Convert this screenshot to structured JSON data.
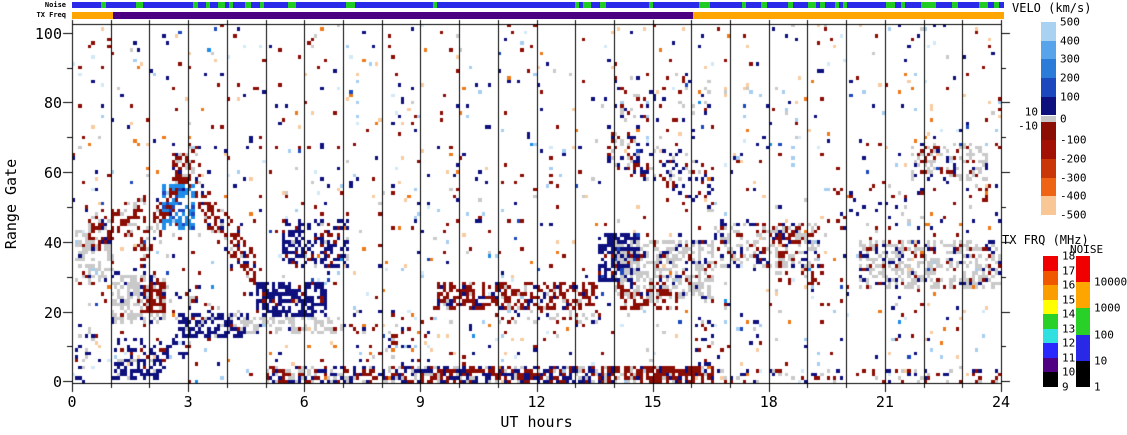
{
  "strips": {
    "noise_label": "Noise",
    "txfreq_label": "TX Freq",
    "noise_base_color": "#2A2AE8",
    "noise_green_color": "#22CC22",
    "noise_green_segments_hours": [
      [
        0.75,
        0.88
      ],
      [
        1.65,
        1.82
      ],
      [
        3.12,
        3.25
      ],
      [
        3.45,
        3.56
      ],
      [
        3.75,
        3.95
      ],
      [
        4.05,
        4.15
      ],
      [
        4.45,
        4.62
      ],
      [
        4.85,
        4.95
      ],
      [
        5.55,
        5.78
      ],
      [
        7.05,
        7.28
      ],
      [
        9.3,
        9.4
      ],
      [
        12.95,
        13.06
      ],
      [
        13.15,
        13.36
      ],
      [
        13.6,
        13.76
      ],
      [
        14.85,
        14.96
      ],
      [
        16.15,
        16.42
      ],
      [
        17.25,
        17.36
      ],
      [
        17.75,
        17.9
      ],
      [
        18.45,
        18.56
      ],
      [
        18.95,
        19.15
      ],
      [
        19.25,
        19.4
      ],
      [
        19.65,
        19.76
      ],
      [
        19.85,
        19.96
      ],
      [
        20.95,
        21.2
      ],
      [
        21.35,
        21.46
      ],
      [
        21.85,
        22.25
      ],
      [
        22.65,
        22.82
      ],
      [
        23.35,
        23.6
      ],
      [
        23.75,
        23.86
      ]
    ],
    "txfreq_segments": [
      {
        "from": 0.0,
        "to": 1.05,
        "color": "#FFA500"
      },
      {
        "from": 1.05,
        "to": 16.0,
        "color": "#4B0082"
      },
      {
        "from": 16.0,
        "to": 24.0,
        "color": "#FFA500"
      }
    ]
  },
  "axes": {
    "x_title": "UT hours",
    "y_title": "Range Gate",
    "x_major_ticks": [
      0,
      3,
      6,
      9,
      12,
      15,
      18,
      21,
      24
    ],
    "x_minor_step": 1,
    "y_major_ticks": [
      0,
      20,
      40,
      60,
      80,
      100
    ],
    "y_minor_step": 10,
    "x_range": [
      0,
      24
    ],
    "y_range": [
      0,
      103
    ]
  },
  "legend": {
    "velo": {
      "title": "VELO (km/s)",
      "labels_right": [
        "500",
        "400",
        "300",
        "200",
        "100",
        "0",
        "-100",
        "-200",
        "-300",
        "-400",
        "-500"
      ],
      "labels_left": [
        "10",
        "-10"
      ],
      "segments": [
        "#A9D2F2",
        "#57A4EA",
        "#2B7CD8",
        "#1C48BE",
        "#0E107E",
        "#C8C8C8",
        "#8B0D04",
        "#A31105",
        "#C93708",
        "#EF6414",
        "#F8C795"
      ]
    },
    "txfrq": {
      "title": "TX FRQ (MHz)",
      "labels": [
        "18",
        "17",
        "16",
        "15",
        "14",
        "13",
        "12",
        "11",
        "10",
        "9"
      ],
      "segments": [
        "#F00000",
        "#F05800",
        "#FA9E00",
        "#FFFF00",
        "#28D028",
        "#30E0E0",
        "#2828FF",
        "#500082",
        "#000000"
      ]
    },
    "noise": {
      "title": "NOISE",
      "labels": [
        "10000",
        "1000",
        "100",
        "10",
        "1"
      ],
      "segments": [
        "#F00000",
        "#FFA500",
        "#28D028",
        "#2828E6",
        "#000000"
      ]
    }
  },
  "chart_data": {
    "type": "heatmap",
    "title": "",
    "xlabel": "UT hours",
    "ylabel": "Range Gate",
    "xlim": [
      0,
      24
    ],
    "ylim": [
      0,
      103
    ],
    "x_tick_labels": [
      "0",
      "3",
      "6",
      "9",
      "12",
      "15",
      "18",
      "21",
      "24"
    ],
    "y_tick_labels": [
      "0",
      "20",
      "40",
      "60",
      "80",
      "100"
    ],
    "grid": "vertical-hour-lines",
    "legend_position": "right",
    "palette": {
      "navy": "#0E107E",
      "darkred": "#8B0D04",
      "red": "#B22015",
      "gray": "#C9C9C9",
      "brightblue": "#1E8CE8",
      "midblue": "#1C48BE",
      "lightblue": "#A6CEF0",
      "paleblue": "#D3E8F8",
      "orange": "#EE7918",
      "peach": "#F8CBA0"
    },
    "features": [
      {
        "t": [
          0.05,
          1.1
        ],
        "g": [
          28,
          45
        ],
        "d": 0.35,
        "c": [
          [
            "gray",
            0.8
          ],
          [
            "darkred",
            0.12
          ],
          [
            "navy",
            0.08
          ]
        ]
      },
      {
        "t": [
          0.45,
          1.9
        ],
        "g": [
          38,
          47
        ],
        "g2": [
          44,
          53
        ],
        "d": 0.4,
        "c": [
          [
            "darkred",
            0.7
          ],
          [
            "gray",
            0.25
          ],
          [
            "navy",
            0.05
          ]
        ]
      },
      {
        "t": [
          1.55,
          3.1
        ],
        "g": [
          30,
          38
        ],
        "g2": [
          58,
          68
        ],
        "d": 0.45,
        "c": [
          [
            "darkred",
            0.72
          ],
          [
            "gray",
            0.18
          ],
          [
            "navy",
            0.1
          ]
        ]
      },
      {
        "t": [
          2.6,
          3.35
        ],
        "g": [
          55,
          66
        ],
        "g2": [
          60,
          69
        ],
        "d": 0.35,
        "c": [
          [
            "darkred",
            0.6
          ],
          [
            "gray",
            0.3
          ],
          [
            "navy",
            0.1
          ]
        ]
      },
      {
        "t": [
          2.35,
          3.2
        ],
        "g": [
          44,
          56
        ],
        "d": 0.55,
        "c": [
          [
            "brightblue",
            0.8
          ],
          [
            "midblue",
            0.15
          ],
          [
            "lightblue",
            0.05
          ]
        ]
      },
      {
        "t": [
          3.15,
          4.75
        ],
        "g": [
          48,
          58
        ],
        "g2": [
          27,
          37
        ],
        "d": 0.45,
        "c": [
          [
            "darkred",
            0.78
          ],
          [
            "gray",
            0.12
          ],
          [
            "navy",
            0.1
          ]
        ]
      },
      {
        "t": [
          1.0,
          2.45
        ],
        "g": [
          17,
          30
        ],
        "d": 0.6,
        "c": [
          [
            "gray",
            0.88
          ],
          [
            "navy",
            0.12
          ]
        ]
      },
      {
        "t": [
          1.75,
          2.45
        ],
        "g": [
          20,
          29
        ],
        "d": 0.6,
        "c": [
          [
            "darkred",
            0.95
          ],
          [
            "navy",
            0.05
          ]
        ]
      },
      {
        "t": [
          2.7,
          4.6
        ],
        "g": [
          13,
          19
        ],
        "d": 0.6,
        "c": [
          [
            "navy",
            0.9
          ],
          [
            "gray",
            0.1
          ]
        ]
      },
      {
        "t": [
          4.75,
          6.6
        ],
        "g": [
          19,
          28
        ],
        "d": 0.68,
        "c": [
          [
            "navy",
            0.92
          ],
          [
            "darkred",
            0.08
          ]
        ]
      },
      {
        "t": [
          4.4,
          7.1
        ],
        "g": [
          14,
          18
        ],
        "d": 0.45,
        "c": [
          [
            "gray",
            0.9
          ],
          [
            "navy",
            0.1
          ]
        ]
      },
      {
        "t": [
          1.1,
          3.0
        ],
        "g": [
          7,
          12
        ],
        "d": 0.32,
        "c": [
          [
            "navy",
            0.85
          ],
          [
            "darkred",
            0.15
          ]
        ]
      },
      {
        "t": [
          5.4,
          7.15
        ],
        "g": [
          33,
          46
        ],
        "d": 0.45,
        "c": [
          [
            "navy",
            0.72
          ],
          [
            "darkred",
            0.22
          ],
          [
            "gray",
            0.06
          ]
        ]
      },
      {
        "t": [
          1.0,
          2.4
        ],
        "g": [
          1,
          6
        ],
        "d": 0.5,
        "c": [
          [
            "navy",
            0.88
          ],
          [
            "gray",
            0.12
          ]
        ]
      },
      {
        "t": [
          5.0,
          9.5
        ],
        "g": [
          0,
          4
        ],
        "d": 0.6,
        "c": [
          [
            "navy",
            0.38
          ],
          [
            "darkred",
            0.34
          ],
          [
            "gray",
            0.28
          ]
        ]
      },
      {
        "t": [
          9.5,
          13.7
        ],
        "g": [
          0,
          4
        ],
        "d": 0.7,
        "c": [
          [
            "navy",
            0.45
          ],
          [
            "darkred",
            0.35
          ],
          [
            "gray",
            0.2
          ]
        ]
      },
      {
        "t": [
          13.7,
          16.6
        ],
        "g": [
          0,
          4
        ],
        "d": 0.8,
        "c": [
          [
            "darkred",
            0.72
          ],
          [
            "navy",
            0.16
          ],
          [
            "gray",
            0.12
          ]
        ]
      },
      {
        "t": [
          16.6,
          24.0
        ],
        "g": [
          0,
          3
        ],
        "d": 0.22,
        "c": [
          [
            "darkred",
            0.4
          ],
          [
            "navy",
            0.35
          ],
          [
            "gray",
            0.25
          ]
        ]
      },
      {
        "t": [
          9.4,
          13.6
        ],
        "g": [
          21,
          28
        ],
        "d": 0.5,
        "c": [
          [
            "darkred",
            0.78
          ],
          [
            "navy",
            0.13
          ],
          [
            "gray",
            0.09
          ]
        ]
      },
      {
        "t": [
          13.55,
          14.7
        ],
        "g": [
          29,
          42
        ],
        "d": 0.65,
        "c": [
          [
            "navy",
            0.9
          ],
          [
            "midblue",
            0.1
          ]
        ]
      },
      {
        "t": [
          14.0,
          16.6
        ],
        "g": [
          24,
          40
        ],
        "d": 0.55,
        "c": [
          [
            "gray",
            0.78
          ],
          [
            "navy",
            0.11
          ],
          [
            "darkred",
            0.11
          ]
        ]
      },
      {
        "t": [
          14.2,
          15.7
        ],
        "g": [
          21,
          26
        ],
        "d": 0.45,
        "c": [
          [
            "darkred",
            0.85
          ],
          [
            "gray",
            0.15
          ]
        ]
      },
      {
        "t": [
          13.85,
          15.6
        ],
        "g": [
          62,
          73
        ],
        "g2": [
          54,
          64
        ],
        "d": 0.3,
        "c": [
          [
            "navy",
            0.42
          ],
          [
            "darkred",
            0.3
          ],
          [
            "gray",
            0.28
          ]
        ]
      },
      {
        "t": [
          16.6,
          19.25
        ],
        "g": [
          33,
          45
        ],
        "d": 0.4,
        "c": [
          [
            "gray",
            0.58
          ],
          [
            "navy",
            0.21
          ],
          [
            "darkred",
            0.21
          ]
        ]
      },
      {
        "t": [
          18.2,
          19.4
        ],
        "g": [
          28,
          44
        ],
        "d": 0.25,
        "c": [
          [
            "darkred",
            0.68
          ],
          [
            "gray",
            0.2
          ],
          [
            "navy",
            0.12
          ]
        ]
      },
      {
        "t": [
          20.3,
          24.0
        ],
        "g": [
          27,
          40
        ],
        "d": 0.5,
        "c": [
          [
            "gray",
            0.74
          ],
          [
            "navy",
            0.13
          ],
          [
            "darkred",
            0.13
          ]
        ]
      },
      {
        "t": [
          21.7,
          23.7
        ],
        "g": [
          58,
          68
        ],
        "d": 0.35,
        "c": [
          [
            "gray",
            0.68
          ],
          [
            "darkred",
            0.2
          ],
          [
            "navy",
            0.12
          ]
        ]
      },
      {
        "t": [
          0.05,
          0.6
        ],
        "g": [
          2,
          22
        ],
        "d": 0.15,
        "c": [
          [
            "gray",
            0.6
          ],
          [
            "navy",
            0.4
          ]
        ]
      },
      {
        "t": [
          2.9,
          4.35
        ],
        "g": [
          20,
          27
        ],
        "g2": [
          14,
          20
        ],
        "d": 0.25,
        "c": [
          [
            "gray",
            0.55
          ],
          [
            "darkred",
            0.25
          ],
          [
            "navy",
            0.2
          ]
        ]
      },
      {
        "t": [
          10.8,
          13.6
        ],
        "g": [
          17,
          21
        ],
        "d": 0.18,
        "c": [
          [
            "gray",
            0.5
          ],
          [
            "darkred",
            0.3
          ],
          [
            "navy",
            0.2
          ]
        ]
      },
      {
        "t": [
          14.0,
          16.5
        ],
        "g": [
          75,
          88
        ],
        "d": 0.12,
        "c": [
          [
            "darkred",
            0.4
          ],
          [
            "navy",
            0.3
          ],
          [
            "gray",
            0.3
          ]
        ]
      },
      {
        "t": [
          15.4,
          16.6
        ],
        "g": [
          56,
          68
        ],
        "g2": [
          48,
          60
        ],
        "d": 0.25,
        "c": [
          [
            "navy",
            0.45
          ],
          [
            "gray",
            0.3
          ],
          [
            "darkred",
            0.25
          ]
        ]
      },
      {
        "t": [
          16.1,
          16.55
        ],
        "g": [
          5,
          30
        ],
        "d": 0.15,
        "c": [
          [
            "navy",
            0.6
          ],
          [
            "darkred",
            0.25
          ],
          [
            "gray",
            0.15
          ]
        ]
      },
      {
        "t": [
          19.5,
          24.0
        ],
        "g": [
          44,
          56
        ],
        "d": 0.08,
        "c": [
          [
            "darkred",
            0.4
          ],
          [
            "navy",
            0.35
          ],
          [
            "orange",
            0.1
          ],
          [
            "gray",
            0.15
          ]
        ]
      },
      {
        "t": [
          7.2,
          9.4
        ],
        "g": [
          5,
          20
        ],
        "d": 0.1,
        "c": [
          [
            "navy",
            0.3
          ],
          [
            "darkred",
            0.3
          ],
          [
            "gray",
            0.15
          ],
          [
            "lightblue",
            0.15
          ],
          [
            "orange",
            0.1
          ]
        ]
      }
    ],
    "scatter": {
      "count": 1150,
      "weights": [
        [
          "navy",
          0.25
        ],
        [
          "darkred",
          0.26
        ],
        [
          "lightblue",
          0.1
        ],
        [
          "paleblue",
          0.07
        ],
        [
          "peach",
          0.12
        ],
        [
          "orange",
          0.07
        ],
        [
          "gray",
          0.08
        ],
        [
          "brightblue",
          0.02
        ],
        [
          "midblue",
          0.03
        ]
      ]
    }
  }
}
